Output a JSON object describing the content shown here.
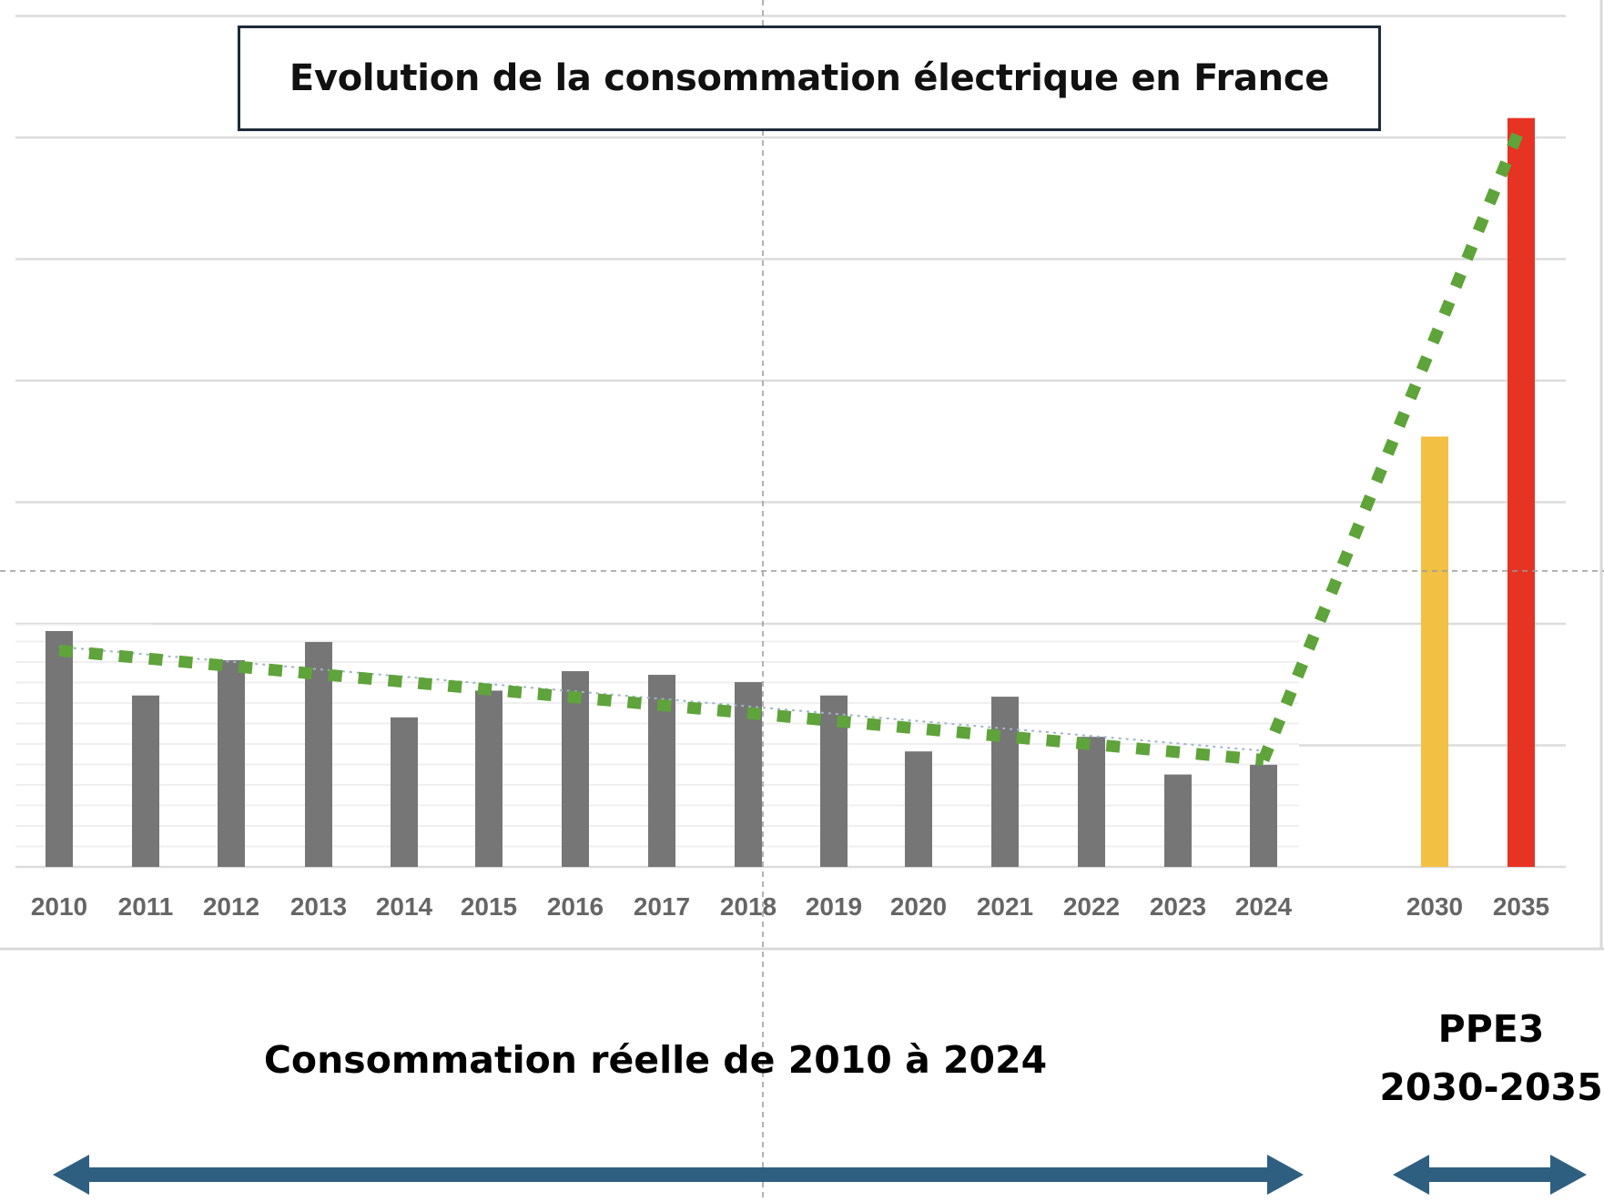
{
  "chart_data": {
    "type": "bar",
    "title": "Evolution de la consommation électrique en France",
    "xlabel": "",
    "ylabel": "",
    "y_axis_labels_shown": false,
    "value_units": "relative units (1 = one major gridline spacing; axis unlabeled, values estimated)",
    "ylim": [
      0,
      7
    ],
    "grid": true,
    "categories": [
      "2010",
      "2011",
      "2012",
      "2013",
      "2014",
      "2015",
      "2016",
      "2017",
      "2018",
      "2019",
      "2020",
      "2021",
      "2022",
      "2023",
      "2024",
      "2030",
      "2035"
    ],
    "series": [
      {
        "name": "Consommation réelle",
        "color": "#767676",
        "values": [
          1.94,
          1.41,
          1.7,
          1.85,
          1.23,
          1.45,
          1.61,
          1.58,
          1.52,
          1.41,
          0.95,
          1.4,
          1.07,
          0.76,
          0.84,
          null,
          null
        ]
      },
      {
        "name": "PPE3 2030",
        "color": "#f2c144",
        "values": [
          null,
          null,
          null,
          null,
          null,
          null,
          null,
          null,
          null,
          null,
          null,
          null,
          null,
          null,
          null,
          3.54,
          null
        ]
      },
      {
        "name": "PPE3 2035",
        "color": "#e63323",
        "values": [
          null,
          null,
          null,
          null,
          null,
          null,
          null,
          null,
          null,
          null,
          null,
          null,
          null,
          null,
          null,
          null,
          6.16
        ]
      }
    ],
    "trendlines": [
      {
        "name": "tendance historique",
        "style": "dotted",
        "color": "#5fa33b",
        "from": [
          "2010",
          1.78
        ],
        "to": [
          "2024",
          0.88
        ]
      },
      {
        "name": "tendance PPE3",
        "style": "dotted",
        "color": "#5fa33b",
        "from": [
          "2024",
          0.88
        ],
        "to": [
          "2035",
          6.1
        ]
      }
    ],
    "annotations": [
      {
        "text": "Consommation réelle de 2010 à 2024",
        "spans": [
          "2010",
          "2024"
        ],
        "arrow": "double"
      },
      {
        "text": "PPE3 2030-2035",
        "spans": [
          "2030",
          "2035"
        ],
        "arrow": "double"
      }
    ]
  },
  "labels": {
    "title": "Evolution de la consommation électrique en France",
    "historical": "Consommation réelle de 2010 à 2024",
    "ppe_line1": "PPE3",
    "ppe_line2": "2030-2035"
  },
  "colors": {
    "historical_bar": "#767676",
    "bar_2030": "#f2c144",
    "bar_2035": "#e63323",
    "trend": "#5fa33b",
    "arrow": "#2f5f80",
    "title_border": "#1c2b3a",
    "tick_text": "#666666"
  }
}
